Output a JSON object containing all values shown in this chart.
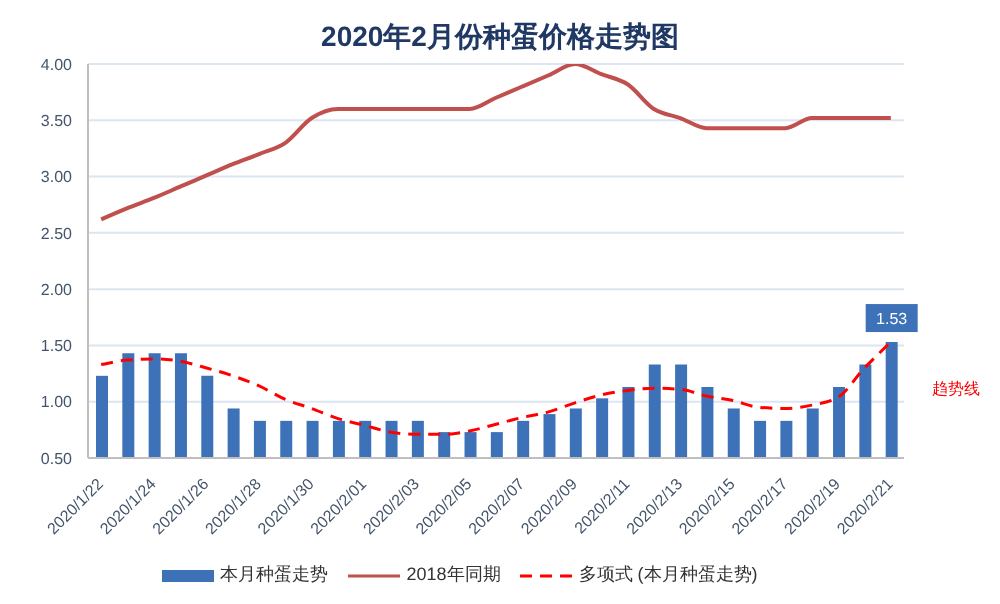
{
  "chart_data": {
    "type": "bar",
    "title": "2020年2月份种蛋价格走势图",
    "categories": [
      "2020/1/22",
      null,
      "2020/1/24",
      null,
      "2020/1/26",
      null,
      "2020/1/28",
      null,
      "2020/1/30",
      null,
      "2020/2/01",
      null,
      "2020/2/03",
      null,
      "2020/2/05",
      null,
      "2020/2/07",
      null,
      "2020/2/09",
      null,
      "2020/2/11",
      null,
      "2020/2/13",
      null,
      "2020/2/15",
      null,
      "2020/2/17",
      null,
      "2020/2/19",
      null,
      "2020/2/21"
    ],
    "series": [
      {
        "name": "本月种蛋走势",
        "color": "#3d72b8",
        "values": [
          1.23,
          1.43,
          1.43,
          1.43,
          1.23,
          0.94,
          0.83,
          0.83,
          0.83,
          0.83,
          0.83,
          0.83,
          0.83,
          0.73,
          0.73,
          0.73,
          0.83,
          0.89,
          0.94,
          1.03,
          1.13,
          1.33,
          1.33,
          1.13,
          0.94,
          0.83,
          0.83,
          0.94,
          1.13,
          1.33,
          1.53
        ],
        "value_labels": [
          null,
          null,
          null,
          null,
          null,
          null,
          null,
          null,
          null,
          null,
          null,
          null,
          null,
          null,
          null,
          null,
          null,
          null,
          null,
          null,
          null,
          null,
          null,
          null,
          null,
          null,
          null,
          null,
          null,
          null,
          "1.53"
        ]
      },
      {
        "name": "2018年同期",
        "type": "line",
        "color": "#c0504d",
        "line_style": "solid",
        "values": [
          2.62,
          2.72,
          2.81,
          2.91,
          3.01,
          3.11,
          3.2,
          3.3,
          3.52,
          3.6,
          3.6,
          3.6,
          3.6,
          3.6,
          3.6,
          3.7,
          3.8,
          3.9,
          4.0,
          3.91,
          3.82,
          3.6,
          3.52,
          3.43,
          3.43,
          3.43,
          3.43,
          3.52,
          3.52,
          3.52,
          3.52
        ]
      },
      {
        "name": "多项式 (本月种蛋走势)",
        "type": "line",
        "color": "#ff0000",
        "line_style": "dashed",
        "values": [
          1.33,
          1.37,
          1.38,
          1.36,
          1.3,
          1.23,
          1.14,
          1.02,
          0.94,
          0.85,
          0.79,
          0.73,
          0.71,
          0.71,
          0.74,
          0.8,
          0.86,
          0.91,
          0.99,
          1.06,
          1.1,
          1.12,
          1.11,
          1.05,
          1.01,
          0.95,
          0.94,
          0.97,
          1.04,
          1.3,
          1.53
        ]
      }
    ],
    "ylim": [
      0.5,
      4.0
    ],
    "yticks": [
      {
        "value": 0.5,
        "label": "0.50"
      },
      {
        "value": 1.0,
        "label": "1.00"
      },
      {
        "value": 1.5,
        "label": "1.50"
      },
      {
        "value": 2.0,
        "label": "2.00"
      },
      {
        "value": 2.5,
        "label": "2.50"
      },
      {
        "value": 3.0,
        "label": "3.00"
      },
      {
        "value": 3.5,
        "label": "3.50"
      },
      {
        "value": 4.0,
        "label": "4.00"
      }
    ],
    "grid": "y",
    "legend": "bottom",
    "marker": "none",
    "annotations": [
      "趋势线"
    ]
  }
}
